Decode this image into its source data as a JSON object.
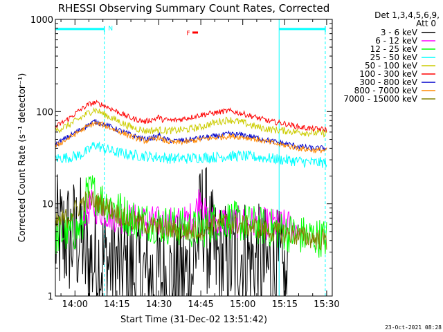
{
  "chart_data": {
    "type": "line",
    "title": "RHESSI Observing Summary Count Rates, Corrected",
    "xlabel": "Start Time (31-Dec-02 13:51:42)",
    "ylabel": "Corrected Count Rate (s⁻¹ detector⁻¹)",
    "y_scale": "log",
    "ylim": [
      1,
      1000
    ],
    "xlim_minutes": [
      -7,
      92
    ],
    "x_tick_labels": [
      "14:00",
      "14:15",
      "14:30",
      "14:45",
      "15:00",
      "15:15",
      "15:30"
    ],
    "x_tick_minutes": [
      0,
      15,
      30,
      45,
      60,
      75,
      90
    ],
    "y_tick_labels": [
      "1",
      "10",
      "100",
      "1000"
    ],
    "y_tick_values": [
      1,
      10,
      100,
      1000
    ],
    "legend_header": [
      "Det 1,3,4,5,6,9,",
      "Att 0"
    ],
    "series": [
      {
        "name": "3 - 6 keV",
        "color": "#000000",
        "x": [
          -7,
          3,
          3.5,
          8,
          14,
          20,
          26,
          30,
          36,
          42,
          43,
          46,
          48,
          51,
          54,
          57,
          58,
          61,
          64,
          67,
          70,
          73,
          76
        ],
        "values": [
          4.2,
          4.2,
          2.5,
          2.4,
          2.2,
          1.8,
          1.6,
          1.5,
          1.5,
          1.8,
          3,
          8,
          3.5,
          2.3,
          2.2,
          2.5,
          3.3,
          2.6,
          2.3,
          1.9,
          1.9,
          1.8,
          1
        ]
      },
      {
        "name": "6 - 12 keV",
        "color": "#ff00ff",
        "x": [
          3,
          6,
          10,
          15,
          20,
          25,
          30,
          35,
          40,
          43,
          45,
          46,
          47,
          50,
          55,
          60,
          65,
          70,
          75,
          80
        ],
        "values": [
          7.5,
          9.5,
          8.2,
          7.2,
          6.8,
          6.5,
          6.3,
          6.2,
          6.4,
          8,
          13,
          9,
          6.8,
          6.5,
          6.4,
          6.3,
          6.2,
          6,
          5.8,
          5.8
        ]
      },
      {
        "name": "12 - 25 keV",
        "color": "#00ff00",
        "x": [
          -7,
          -3,
          0,
          3,
          4,
          6,
          8,
          12,
          16,
          20,
          25,
          30,
          35,
          40,
          45,
          50,
          55,
          60,
          65,
          70,
          75,
          80,
          85,
          90
        ],
        "values": [
          4.5,
          4.8,
          5,
          5.5,
          12,
          14,
          12,
          10,
          8.5,
          7,
          6.5,
          6,
          5.8,
          5.5,
          5.2,
          6.5,
          6.8,
          6.2,
          5.8,
          5.5,
          5,
          4.6,
          4.4,
          4.2
        ]
      },
      {
        "name": "25 - 50 keV",
        "color": "#00ffff",
        "x": [
          -7,
          -2,
          2,
          5,
          7,
          10,
          15,
          20,
          25,
          30,
          35,
          40,
          45,
          50,
          55,
          60,
          65,
          70,
          75,
          80,
          85,
          90
        ],
        "values": [
          31,
          32,
          34,
          38,
          44,
          40,
          36,
          34,
          33,
          32,
          31,
          31,
          32,
          32,
          33,
          33,
          32,
          31,
          30,
          29,
          28,
          28
        ]
      },
      {
        "name": "50 - 100 keV",
        "color": "#cccc00",
        "x": [
          -7,
          -2,
          2,
          5,
          7,
          10,
          15,
          20,
          25,
          30,
          35,
          40,
          45,
          50,
          55,
          60,
          65,
          70,
          75,
          80,
          85,
          90
        ],
        "values": [
          62,
          72,
          85,
          98,
          105,
          95,
          80,
          68,
          62,
          63,
          62,
          64,
          68,
          76,
          82,
          76,
          68,
          64,
          62,
          60,
          59,
          58
        ]
      },
      {
        "name": "100 - 300 keV",
        "color": "#ff0000",
        "x": [
          -7,
          -2,
          2,
          5,
          7,
          10,
          15,
          20,
          25,
          29,
          30,
          31,
          35,
          40,
          45,
          50,
          55,
          60,
          65,
          70,
          75,
          80,
          85,
          90
        ],
        "values": [
          68,
          85,
          105,
          120,
          125,
          118,
          100,
          85,
          78,
          84,
          88,
          82,
          80,
          85,
          92,
          97,
          102,
          95,
          86,
          78,
          74,
          68,
          65,
          64
        ]
      },
      {
        "name": "300 - 800 keV",
        "color": "#0000cc",
        "x": [
          -7,
          -2,
          2,
          5,
          7,
          10,
          15,
          20,
          25,
          29,
          30,
          31,
          35,
          40,
          45,
          50,
          55,
          60,
          65,
          70,
          75,
          80,
          85,
          90
        ],
        "values": [
          44,
          54,
          64,
          72,
          78,
          74,
          64,
          56,
          50,
          53,
          56,
          51,
          48,
          49,
          52,
          54,
          57,
          56,
          52,
          48,
          45,
          42,
          40,
          40
        ]
      },
      {
        "name": "800 - 7000 keV",
        "color": "#ff8800",
        "x": [
          -7,
          -2,
          2,
          5,
          7,
          10,
          15,
          20,
          25,
          29,
          30,
          31,
          35,
          40,
          45,
          50,
          55,
          60,
          65,
          70,
          75,
          80,
          85,
          90
        ],
        "values": [
          42,
          52,
          62,
          70,
          75,
          72,
          62,
          54,
          48,
          51,
          53,
          49,
          46,
          47,
          50,
          52,
          54,
          53,
          50,
          46,
          43,
          40,
          38,
          38
        ]
      },
      {
        "name": "7000 - 15000 keV",
        "color": "#808000",
        "x": [
          -7,
          -3,
          0,
          3,
          6,
          9,
          12,
          16,
          20,
          25,
          30,
          35,
          40,
          45,
          50,
          55,
          60,
          65,
          70,
          75,
          80,
          85,
          90
        ],
        "values": [
          6,
          7,
          8.5,
          10.5,
          11,
          10,
          9,
          7.5,
          6.5,
          6,
          5.5,
          5.2,
          5,
          5.2,
          6,
          6.2,
          5.8,
          5.5,
          5,
          4.8,
          4.5,
          4.2,
          4
        ]
      }
    ],
    "flags": [
      {
        "label": "N",
        "color": "#00ffff",
        "start_minute": -7,
        "end_minute": 10.5
      },
      {
        "label": "",
        "color": "#00ffff",
        "start_minute": 73,
        "end_minute": 89.5
      }
    ],
    "flare_marker": {
      "label": "F",
      "color": "#ff0000",
      "minute": 43
    }
  },
  "timestamp": "23-Oct-2021 08:28"
}
